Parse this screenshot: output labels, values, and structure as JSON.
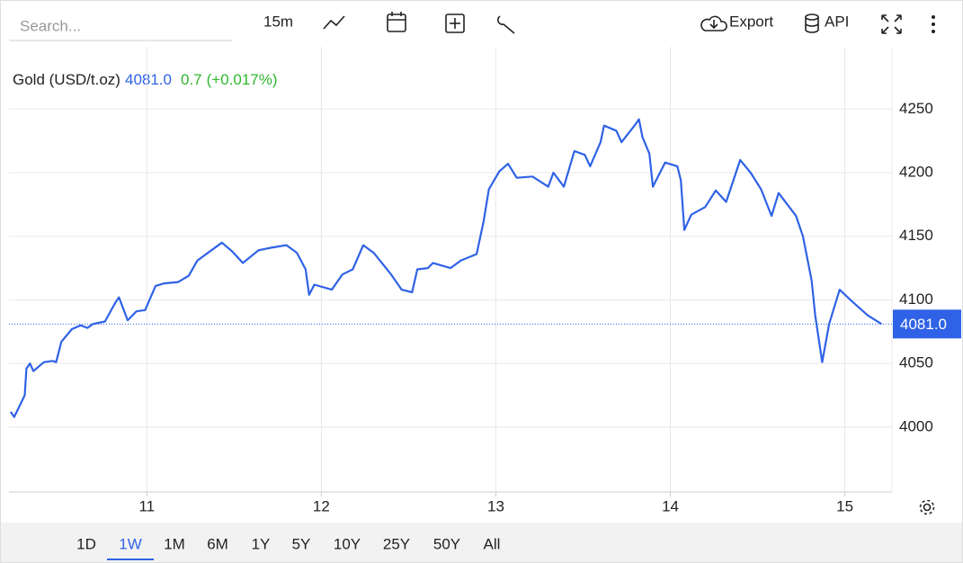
{
  "toolbar": {
    "search_placeholder": "Search...",
    "interval": "15m",
    "export": "Export",
    "api": "API"
  },
  "ranges": {
    "buttons": [
      "1D",
      "1W",
      "1M",
      "6M",
      "1Y",
      "5Y",
      "10Y",
      "25Y",
      "50Y",
      "All"
    ],
    "selected": 1
  },
  "chart_data": {
    "type": "line",
    "header": {
      "price": "4081.0",
      "change": "0.7",
      "change_pct": "(+0.017%)"
    },
    "last_price": {
      "value": 4081,
      "label": "4081.0"
    },
    "x": [
      10.22,
      10.24,
      10.3,
      10.31,
      10.33,
      10.35,
      10.41,
      10.46,
      10.48,
      10.51,
      10.57,
      10.62,
      10.66,
      10.69,
      10.76,
      10.82,
      10.84,
      10.89,
      10.94,
      10.99,
      11.05,
      11.1,
      11.18,
      11.24,
      11.29,
      11.36,
      11.43,
      11.49,
      11.55,
      11.64,
      11.71,
      11.8,
      11.86,
      11.91,
      11.93,
      11.96,
      12.06,
      12.12,
      12.18,
      12.24,
      12.3,
      12.4,
      12.46,
      12.52,
      12.55,
      12.61,
      12.64,
      12.74,
      12.8,
      12.89,
      12.93,
      12.96,
      13.02,
      13.07,
      13.12,
      13.21,
      13.3,
      13.33,
      13.39,
      13.45,
      13.51,
      13.54,
      13.6,
      13.62,
      13.69,
      13.72,
      13.8,
      13.82,
      13.84,
      13.88,
      13.9,
      13.97,
      14.04,
      14.06,
      14.08,
      14.12,
      14.2,
      14.26,
      14.32,
      14.4,
      14.46,
      14.52,
      14.58,
      14.62,
      14.72,
      14.76,
      14.81,
      14.83,
      14.87,
      14.91,
      14.97,
      15.04,
      15.13,
      15.21
    ],
    "series": [
      {
        "name": "Gold (USD/t.oz)",
        "color": "#2f62e6",
        "values": [
          4012,
          4008,
          4025,
          4046,
          4050,
          4044,
          4051,
          4052,
          4051,
          4067,
          4077,
          4080,
          4078,
          4081,
          4083,
          4098,
          4102,
          4084,
          4091,
          4092,
          4111,
          4113,
          4114,
          4119,
          4131,
          4138,
          4145,
          4138,
          4129,
          4139,
          4141,
          4143,
          4137,
          4124,
          4104,
          4112,
          4108,
          4120,
          4124,
          4143,
          4137,
          4120,
          4108,
          4106,
          4124,
          4125,
          4129,
          4125,
          4131,
          4136,
          4162,
          4187,
          4201,
          4207,
          4196,
          4197,
          4189,
          4200,
          4189,
          4217,
          4214,
          4205,
          4224,
          4237,
          4233,
          4224,
          4238,
          4242,
          4228,
          4215,
          4189,
          4208,
          4205,
          4194,
          4155,
          4167,
          4173,
          4186,
          4177,
          4210,
          4200,
          4187,
          4166,
          4184,
          4166,
          4150,
          4115,
          4088,
          4051,
          4081,
          4108,
          4099,
          4088,
          4081
        ]
      }
    ],
    "xlim": [
      10.21,
      15.27
    ],
    "ylim": [
      3949,
      4299
    ],
    "xticks": [
      11,
      12,
      13,
      14,
      15
    ],
    "yticks": [
      4000,
      4050,
      4100,
      4150,
      4200,
      4250
    ],
    "grid": true
  }
}
